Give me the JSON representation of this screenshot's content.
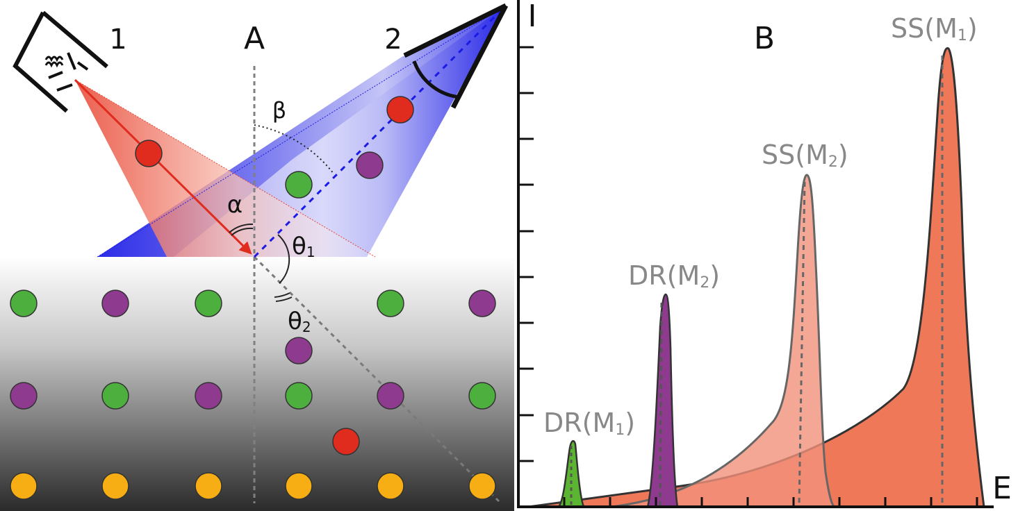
{
  "panel_a": {
    "label": "A",
    "source_label": "1",
    "detector_label": "2",
    "alpha": "α",
    "beta": "β",
    "theta1_base": "θ",
    "theta1_sub": "1",
    "theta2_base": "θ",
    "theta2_sub": "2"
  },
  "panel_b": {
    "label": "B",
    "y_axis_label": "I",
    "x_axis_label": "E",
    "peaks": [
      {
        "base": "DR(M",
        "sub": "1",
        "close": ")",
        "color": "#5cb531",
        "height_fraction": 0.11
      },
      {
        "base": "DR(M",
        "sub": "2",
        "close": ")",
        "color": "#8a2f8a",
        "height_fraction": 0.45
      },
      {
        "base": "SS(M",
        "sub": "2",
        "close": ")",
        "color": "#f2917a",
        "height_fraction": 0.72
      },
      {
        "base": "SS(M",
        "sub": "1",
        "close": ")",
        "color": "#ee6c4b",
        "height_fraction": 1.0
      }
    ]
  },
  "colors": {
    "green": "#4caf3e",
    "purple": "#8e3a8e",
    "red": "#e02b1f",
    "orange": "#f7ad14",
    "beam_red": "#e23a2a",
    "beam_blue": "#1414e6"
  }
}
